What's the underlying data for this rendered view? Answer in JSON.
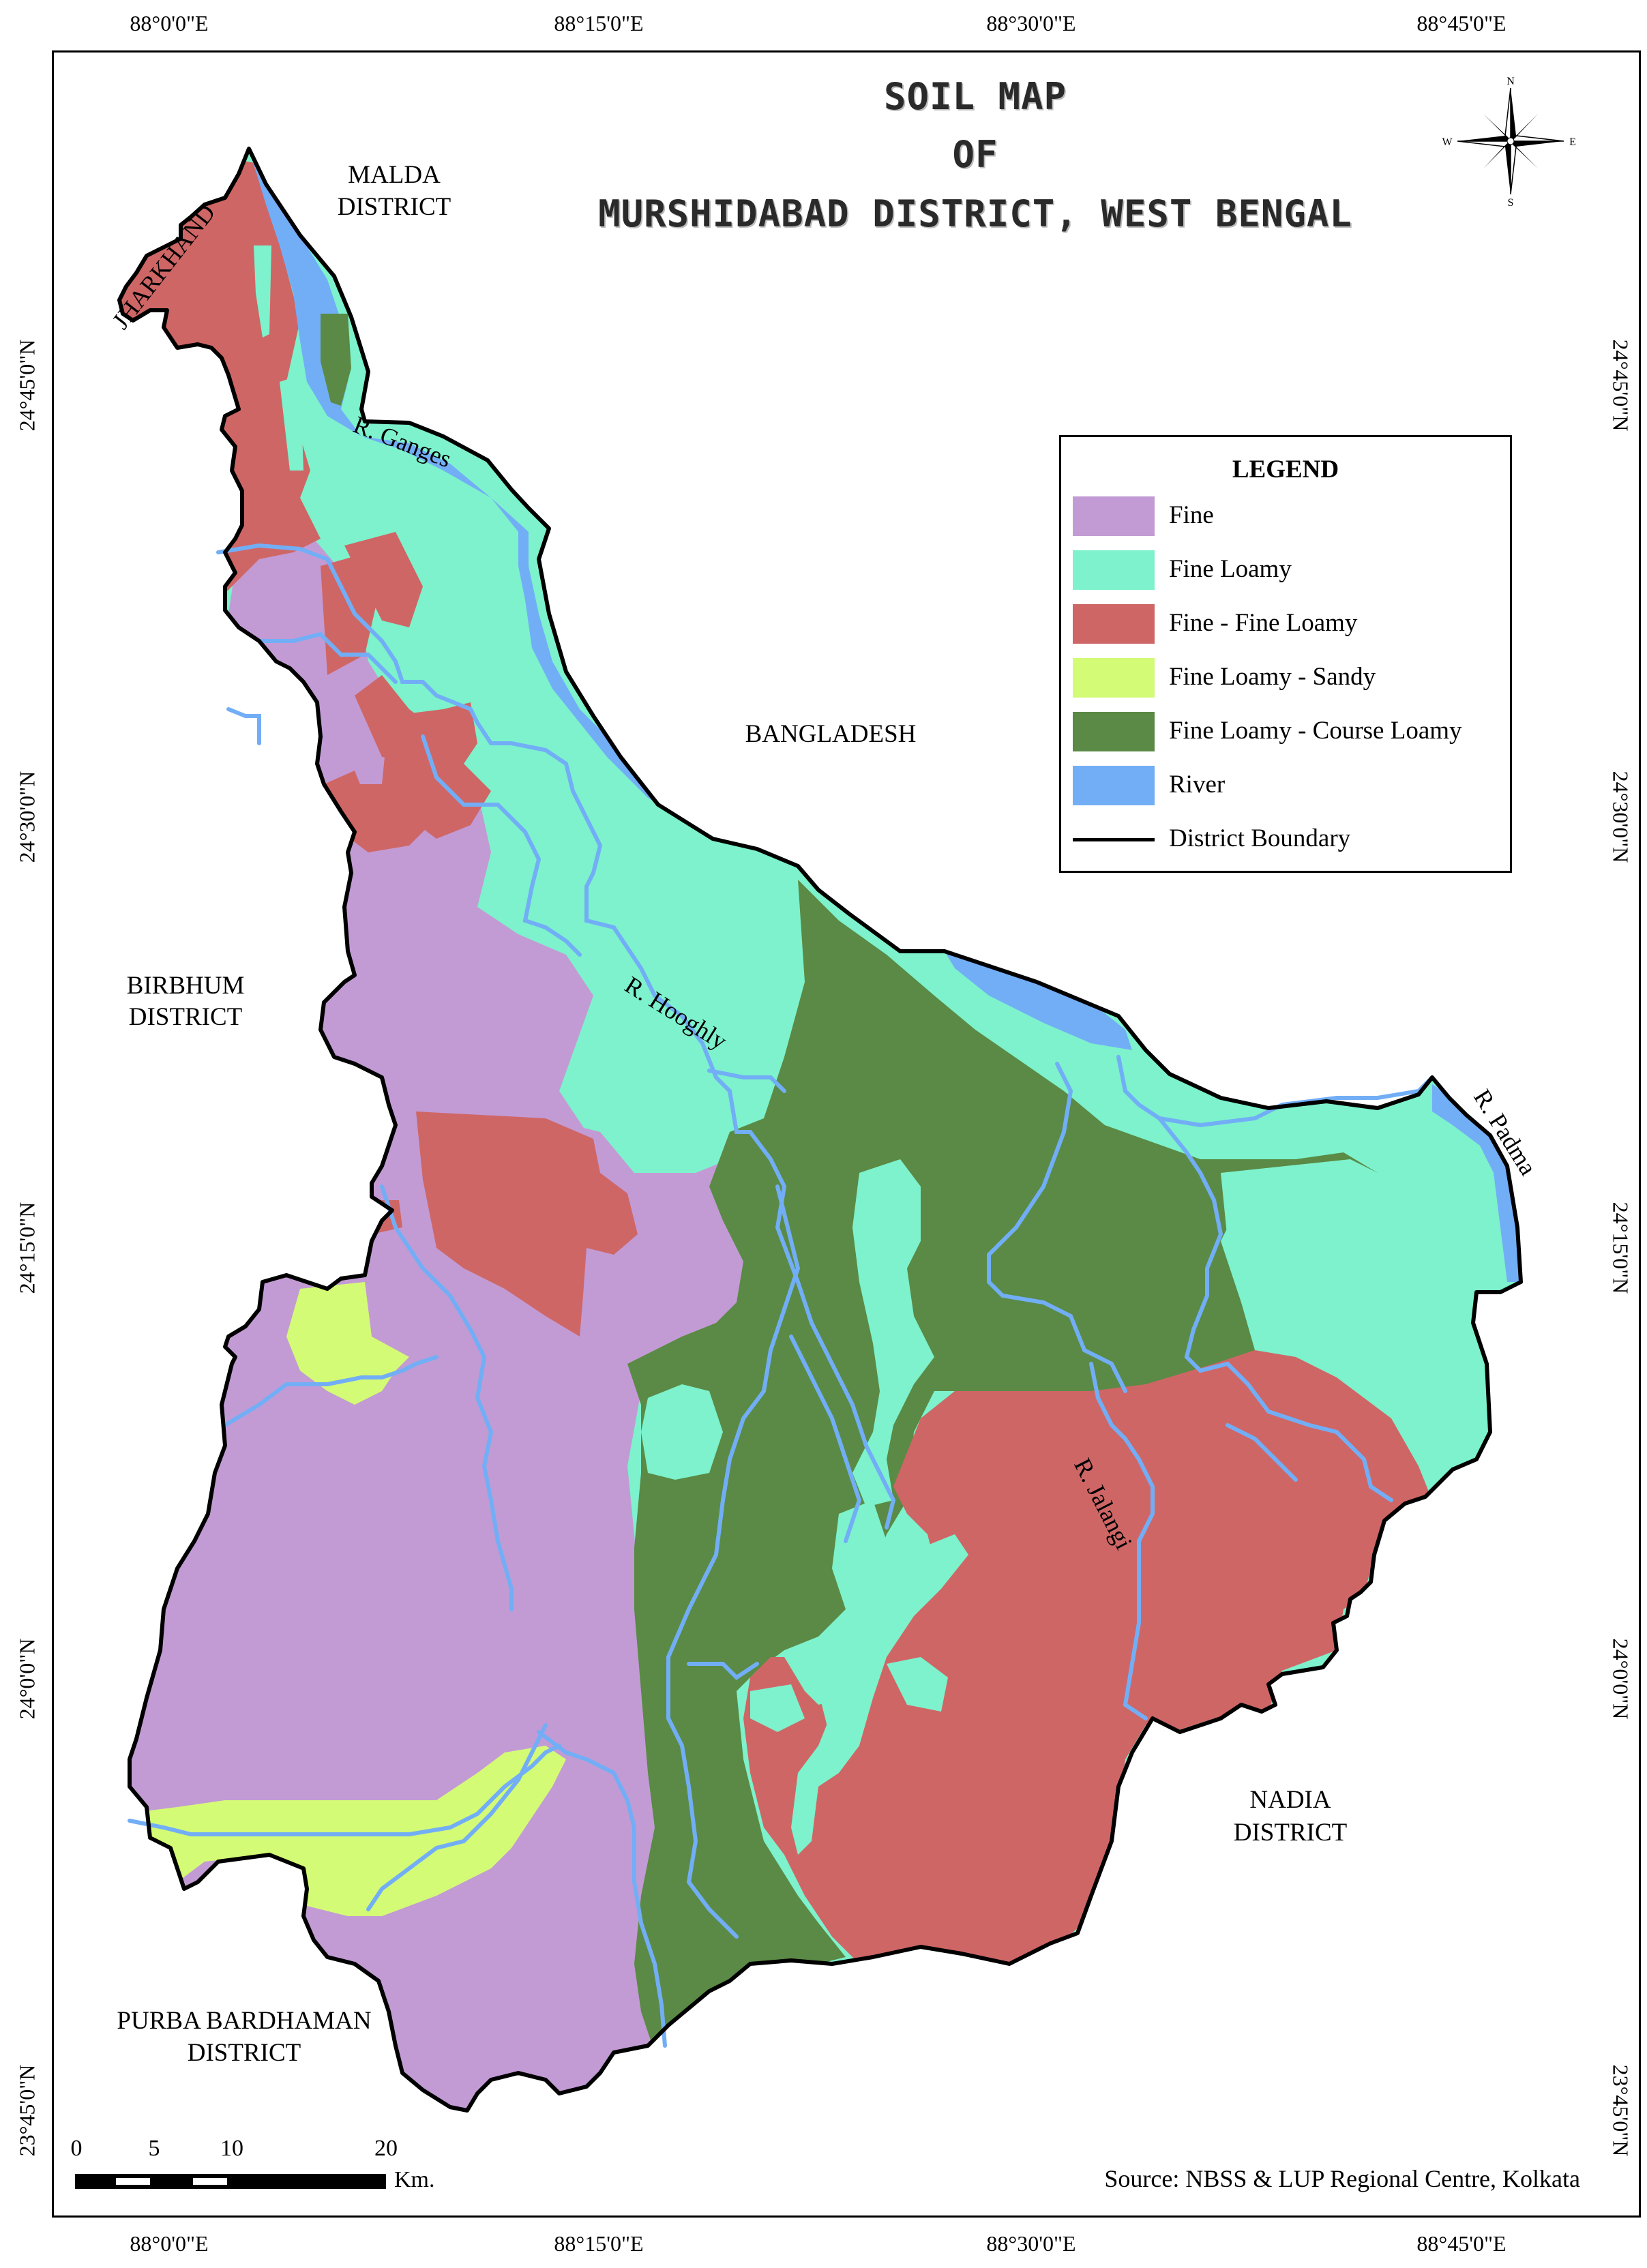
{
  "title": {
    "line1": "SOIL MAP",
    "line2": "OF",
    "line3": "MURSHIDABAD DISTRICT, WEST BENGAL"
  },
  "graticule": {
    "longitudes": [
      "88°0'0\"E",
      "88°15'0\"E",
      "88°30'0\"E",
      "88°45'0\"E"
    ],
    "latitudes": [
      "24°45'0\"N",
      "24°30'0\"N",
      "24°15'0\"N",
      "24°0'0\"N",
      "23°45'0\"N"
    ]
  },
  "compass": {
    "n": "N",
    "s": "S",
    "e": "E",
    "w": "W"
  },
  "regions": {
    "jharkhand": "JHARKHAND",
    "malda_1": "MALDA",
    "malda_2": "DISTRICT",
    "bangladesh": "BANGLADESH",
    "birbhum_1": "BIRBHUM",
    "birbhum_2": "DISTRICT",
    "nadia_1": "NADIA",
    "nadia_2": "DISTRICT",
    "purba_1": "PURBA BARDHAMAN",
    "purba_2": "DISTRICT"
  },
  "rivers": {
    "ganges": "R. Ganges",
    "hooghly": "R. Hooghly",
    "jalangi": "R. Jalangi",
    "padma": "R. Padma"
  },
  "legend": {
    "title": "LEGEND",
    "items": [
      {
        "label": "Fine",
        "color": "#c29bd4",
        "kind": "fill"
      },
      {
        "label": "Fine Loamy",
        "color": "#7df2cc",
        "kind": "fill"
      },
      {
        "label": "Fine - Fine Loamy",
        "color": "#cf6666",
        "kind": "fill"
      },
      {
        "label": "Fine Loamy - Sandy",
        "color": "#d4fb75",
        "kind": "fill"
      },
      {
        "label": "Fine Loamy - Course Loamy",
        "color": "#5a8a45",
        "kind": "fill"
      },
      {
        "label": "River",
        "color": "#72aef6",
        "kind": "fill"
      },
      {
        "label": "District Boundary",
        "color": "#000000",
        "kind": "line"
      }
    ]
  },
  "scale_bar": {
    "ticks": [
      "0",
      "5",
      "10",
      "20"
    ],
    "unit": "Km."
  },
  "source": "Source: NBSS & LUP Regional Centre, Kolkata"
}
